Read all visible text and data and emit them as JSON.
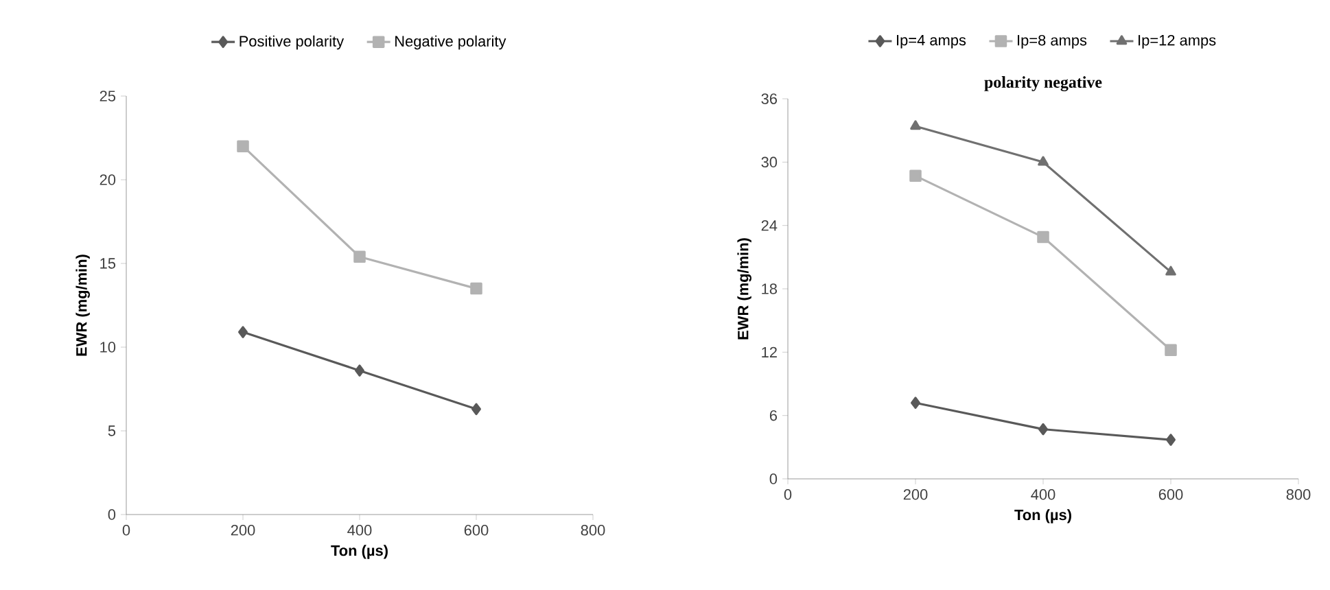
{
  "chart_data": [
    {
      "type": "line",
      "xlabel": "Ton (µs)",
      "ylabel": "EWR (mg/min)",
      "x": [
        200,
        400,
        600
      ],
      "xlim": [
        0,
        800
      ],
      "xticks": [
        0,
        200,
        400,
        600,
        800
      ],
      "ylim": [
        0,
        25
      ],
      "yticks": [
        0,
        5,
        10,
        15,
        20,
        25
      ],
      "legend": "top",
      "series": [
        {
          "name": "Positive polarity",
          "color": "#595959",
          "marker": "diamond",
          "values": [
            10.9,
            8.6,
            6.3
          ]
        },
        {
          "name": "Negative polarity",
          "color": "#b2b2b2",
          "marker": "square",
          "values": [
            22.0,
            15.4,
            13.5
          ]
        }
      ]
    },
    {
      "type": "line",
      "title": "polarity negative",
      "xlabel": "Ton (µs)",
      "ylabel": "EWR (mg/min)",
      "x": [
        200,
        400,
        600
      ],
      "xlim": [
        0,
        800
      ],
      "xticks": [
        0,
        200,
        400,
        600,
        800
      ],
      "ylim": [
        0,
        36
      ],
      "yticks": [
        0,
        6,
        12,
        18,
        24,
        30,
        36
      ],
      "legend": "top",
      "series": [
        {
          "name": "Ip=4 amps",
          "color": "#595959",
          "marker": "diamond",
          "values": [
            7.2,
            4.7,
            3.7
          ]
        },
        {
          "name": "Ip=8 amps",
          "color": "#b2b2b2",
          "marker": "square",
          "values": [
            28.7,
            22.9,
            12.2
          ]
        },
        {
          "name": "Ip=12 amps",
          "color": "#707070",
          "marker": "triangle",
          "values": [
            33.4,
            30.0,
            19.6
          ]
        }
      ]
    }
  ]
}
